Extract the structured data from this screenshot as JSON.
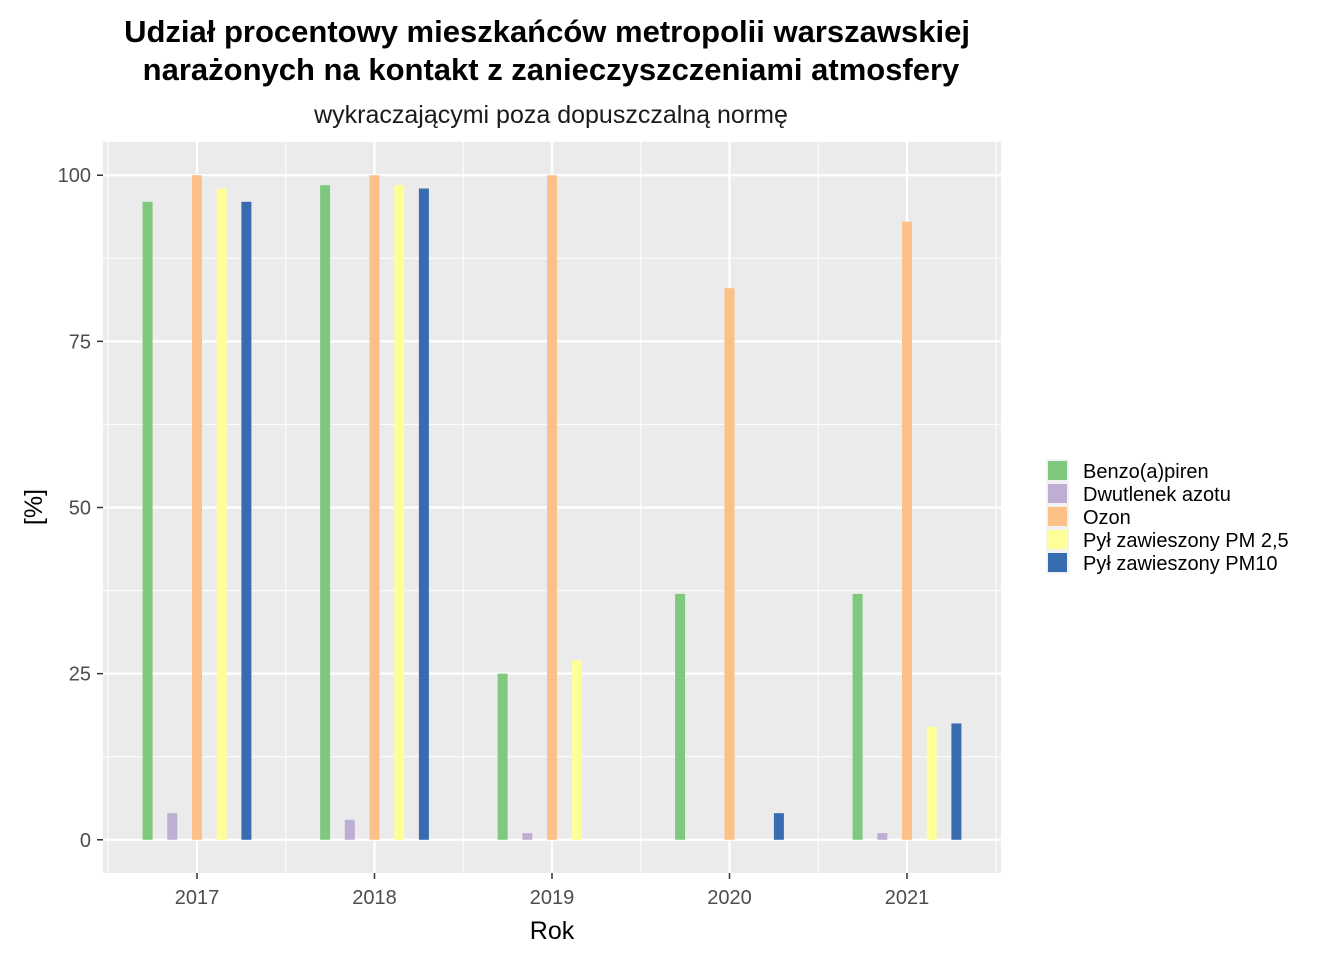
{
  "chart_data": {
    "type": "bar",
    "title_line1": "Udział procentowy mieszkańców metropolii warszawskiej",
    "title_line2": "narażonych na kontakt z zanieczyszczeniami atmosfery",
    "subtitle": "wykraczającymi poza dopuszczalną normę",
    "xlabel": "Rok",
    "ylabel": "[%]",
    "categories": [
      "2017",
      "2018",
      "2019",
      "2020",
      "2021"
    ],
    "ylim": [
      -5,
      105
    ],
    "yticks": [
      0,
      25,
      50,
      75,
      100
    ],
    "grid": true,
    "legend_position": "right",
    "series": [
      {
        "name": "Benzo(a)piren",
        "color": "#7FC97F",
        "values": [
          96,
          98.5,
          25,
          37,
          37
        ]
      },
      {
        "name": "Dwutlenek azotu",
        "color": "#BEAED4",
        "values": [
          4,
          3,
          1,
          0,
          1
        ]
      },
      {
        "name": "Ozon",
        "color": "#FDC086",
        "values": [
          100,
          100,
          100,
          83,
          93
        ]
      },
      {
        "name": "Pył zawieszony PM 2,5",
        "color": "#FFFF99",
        "values": [
          98,
          98.5,
          27,
          0,
          17
        ]
      },
      {
        "name": "Pył zawieszony PM10",
        "color": "#386CB0",
        "values": [
          96,
          98,
          0,
          4,
          17.5
        ]
      }
    ]
  }
}
